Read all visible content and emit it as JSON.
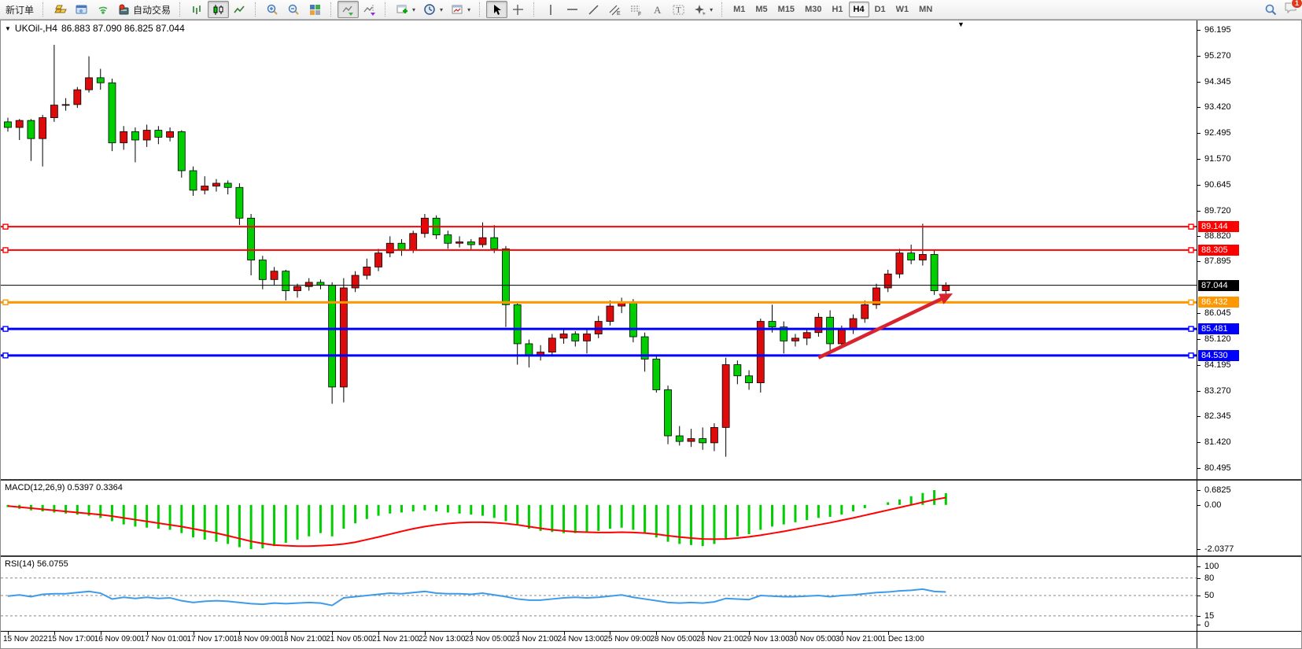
{
  "toolbar": {
    "new_order": "新订单",
    "auto_trading": "自动交易",
    "timeframes": [
      "M1",
      "M5",
      "M15",
      "M30",
      "H1",
      "H4",
      "D1",
      "W1",
      "MN"
    ],
    "active_timeframe": "H4",
    "notification_badge": "1",
    "icon_names": [
      "gold-bars-icon",
      "terminal-icon",
      "signals-icon",
      "auto-trading-icon",
      "bar-chart-icon",
      "candlestick-chart-icon",
      "line-chart-icon",
      "zoom-in-icon",
      "zoom-out-icon",
      "tile-windows-icon",
      "auto-scroll-icon",
      "chart-shift-icon",
      "add-indicator-icon",
      "periods-clock-icon",
      "templates-icon",
      "cursor-icon",
      "crosshair-icon",
      "vertical-line-icon",
      "horizontal-line-icon",
      "trendline-icon",
      "equidistant-channel-icon",
      "fibonacci-icon",
      "text-icon",
      "text-label-icon",
      "arrows-icon",
      "search-icon",
      "chat-icon"
    ]
  },
  "chart_window": {
    "title": "UKOil-,H4",
    "ohlc": "86.883 87.090 86.825 87.044"
  },
  "macd_pane": {
    "label": "MACD(12,26,9) 0.5397 0.3364"
  },
  "rsi_pane": {
    "label": "RSI(14) 56.0755"
  },
  "chart_data": {
    "type": "candlestick",
    "symbol": "UKOil-",
    "period": "H4",
    "current": {
      "open": 86.883,
      "high": 87.09,
      "low": 86.825,
      "close": 87.044
    },
    "y_ticks": [
      96.195,
      95.27,
      94.345,
      93.42,
      92.495,
      91.57,
      90.645,
      89.72,
      88.82,
      87.895,
      86.045,
      85.12,
      84.195,
      83.27,
      82.345,
      81.42,
      80.495
    ],
    "y_range": [
      80.495,
      96.195
    ],
    "x_labels": [
      "15 Nov 2022",
      "15 Nov 17:00",
      "16 Nov 09:00",
      "17 Nov 01:00",
      "17 Nov 17:00",
      "18 Nov 09:00",
      "18 Nov 21:00",
      "21 Nov 05:00",
      "21 Nov 21:00",
      "22 Nov 13:00",
      "23 Nov 05:00",
      "23 Nov 21:00",
      "24 Nov 13:00",
      "25 Nov 09:00",
      "28 Nov 05:00",
      "28 Nov 21:00",
      "29 Nov 13:00",
      "30 Nov 05:00",
      "30 Nov 21:00",
      "1 Dec 13:00"
    ],
    "x_label_every": 4,
    "colors": {
      "bull": "#dd0b0b",
      "bear": "#00ce00",
      "wick": "#000000",
      "background": "#ffffff"
    },
    "candles": [
      [
        92.9,
        93.05,
        92.55,
        92.7
      ],
      [
        92.7,
        93.0,
        92.25,
        92.95
      ],
      [
        92.95,
        93.0,
        91.5,
        92.3
      ],
      [
        92.3,
        93.15,
        91.3,
        93.05
      ],
      [
        93.05,
        95.66,
        92.9,
        93.5
      ],
      [
        93.5,
        93.75,
        93.3,
        93.52
      ],
      [
        93.52,
        94.15,
        93.4,
        94.05
      ],
      [
        94.05,
        95.25,
        93.95,
        94.48
      ],
      [
        94.48,
        94.8,
        94.05,
        94.3
      ],
      [
        94.3,
        94.45,
        91.85,
        92.15
      ],
      [
        92.15,
        92.75,
        91.9,
        92.55
      ],
      [
        92.55,
        92.7,
        91.45,
        92.25
      ],
      [
        92.25,
        92.8,
        92.0,
        92.6
      ],
      [
        92.6,
        92.75,
        92.1,
        92.35
      ],
      [
        92.35,
        92.7,
        92.2,
        92.55
      ],
      [
        92.55,
        92.6,
        90.9,
        91.15
      ],
      [
        91.15,
        91.3,
        90.25,
        90.45
      ],
      [
        90.45,
        90.95,
        90.3,
        90.6
      ],
      [
        90.6,
        90.85,
        90.4,
        90.7
      ],
      [
        90.7,
        90.8,
        90.3,
        90.55
      ],
      [
        90.55,
        90.7,
        89.2,
        89.45
      ],
      [
        89.45,
        89.6,
        87.4,
        87.95
      ],
      [
        87.95,
        88.1,
        86.9,
        87.25
      ],
      [
        87.25,
        87.7,
        87.05,
        87.55
      ],
      [
        87.55,
        87.6,
        86.5,
        86.85
      ],
      [
        86.85,
        87.1,
        86.6,
        87.0
      ],
      [
        87.0,
        87.3,
        86.85,
        87.15
      ],
      [
        87.15,
        87.25,
        86.9,
        87.05
      ],
      [
        87.05,
        87.15,
        82.8,
        83.4
      ],
      [
        83.4,
        87.3,
        82.85,
        86.95
      ],
      [
        86.95,
        87.55,
        86.8,
        87.4
      ],
      [
        87.4,
        88.0,
        87.25,
        87.7
      ],
      [
        87.7,
        88.35,
        87.55,
        88.2
      ],
      [
        88.2,
        88.8,
        88.05,
        88.55
      ],
      [
        88.55,
        88.7,
        88.1,
        88.3
      ],
      [
        88.3,
        89.0,
        88.2,
        88.9
      ],
      [
        88.9,
        89.6,
        88.75,
        89.45
      ],
      [
        89.45,
        89.55,
        88.7,
        88.85
      ],
      [
        88.85,
        89.0,
        88.35,
        88.55
      ],
      [
        88.55,
        88.8,
        88.4,
        88.6
      ],
      [
        88.6,
        88.7,
        88.3,
        88.5
      ],
      [
        88.5,
        89.3,
        88.4,
        88.75
      ],
      [
        88.75,
        89.2,
        88.2,
        88.35
      ],
      [
        88.35,
        88.45,
        85.55,
        86.35
      ],
      [
        86.35,
        86.45,
        84.2,
        84.95
      ],
      [
        84.95,
        85.1,
        84.1,
        84.55
      ],
      [
        84.55,
        84.9,
        84.35,
        84.65
      ],
      [
        84.65,
        85.3,
        84.5,
        85.15
      ],
      [
        85.15,
        85.45,
        84.95,
        85.3
      ],
      [
        85.3,
        85.4,
        84.85,
        85.05
      ],
      [
        85.05,
        85.5,
        84.6,
        85.3
      ],
      [
        85.3,
        85.95,
        85.15,
        85.75
      ],
      [
        85.75,
        86.5,
        85.6,
        86.3
      ],
      [
        86.3,
        86.6,
        86.05,
        86.45
      ],
      [
        86.45,
        86.55,
        85.0,
        85.2
      ],
      [
        85.2,
        85.35,
        83.95,
        84.4
      ],
      [
        84.4,
        84.55,
        83.2,
        83.3
      ],
      [
        83.3,
        83.45,
        81.35,
        81.65
      ],
      [
        81.65,
        82.0,
        81.3,
        81.45
      ],
      [
        81.45,
        81.9,
        81.25,
        81.55
      ],
      [
        81.55,
        81.95,
        81.15,
        81.4
      ],
      [
        81.4,
        82.1,
        81.1,
        81.95
      ],
      [
        81.95,
        84.45,
        80.9,
        84.2
      ],
      [
        84.2,
        84.35,
        83.5,
        83.8
      ],
      [
        83.8,
        84.0,
        83.3,
        83.55
      ],
      [
        83.55,
        85.85,
        83.2,
        85.75
      ],
      [
        85.75,
        86.35,
        85.35,
        85.55
      ],
      [
        85.55,
        85.75,
        84.6,
        85.05
      ],
      [
        85.05,
        85.3,
        84.85,
        85.15
      ],
      [
        85.15,
        85.45,
        84.9,
        85.35
      ],
      [
        85.35,
        86.05,
        85.2,
        85.9
      ],
      [
        85.9,
        86.15,
        84.6,
        84.95
      ],
      [
        84.95,
        85.6,
        84.8,
        85.45
      ],
      [
        85.45,
        86.0,
        85.3,
        85.85
      ],
      [
        85.85,
        86.5,
        85.7,
        86.35
      ],
      [
        86.35,
        87.1,
        86.2,
        86.95
      ],
      [
        86.95,
        87.6,
        86.8,
        87.45
      ],
      [
        87.45,
        88.35,
        87.3,
        88.2
      ],
      [
        88.2,
        88.5,
        87.8,
        87.95
      ],
      [
        87.95,
        89.25,
        87.75,
        88.15
      ],
      [
        88.15,
        88.3,
        86.7,
        86.85
      ],
      [
        86.85,
        87.15,
        86.7,
        87.044
      ]
    ],
    "hlines": [
      {
        "price": 89.144,
        "color": "#ff0000",
        "width": 2,
        "label": "89.144",
        "markers": true
      },
      {
        "price": 88.305,
        "color": "#ff0000",
        "width": 2,
        "label": "88.305",
        "markers": true
      },
      {
        "price": 87.044,
        "color": "#000000",
        "width": 1,
        "label": "87.044",
        "markers": false,
        "role": "current-price"
      },
      {
        "price": 86.432,
        "color": "#ff9800",
        "width": 3,
        "label": "86.432",
        "markers": true
      },
      {
        "price": 85.481,
        "color": "#0000ff",
        "width": 3,
        "label": "85.481",
        "markers": true
      },
      {
        "price": 84.53,
        "color": "#0000ff",
        "width": 3,
        "label": "84.530",
        "markers": true
      }
    ],
    "arrow": {
      "candle1": 70,
      "price1": 84.45,
      "candle2": 81.6,
      "price2": 86.75,
      "color": "#d9232e"
    },
    "macd": {
      "params": "12,26,9",
      "value": 0.5397,
      "signal_value": 0.3364,
      "axis_labels": [
        "0.6825",
        "0.00",
        "-2.0377"
      ],
      "histogram_color": "#00ce00",
      "signal_color": "#ff0000",
      "histogram": [
        -0.1,
        -0.18,
        -0.25,
        -0.3,
        -0.35,
        -0.4,
        -0.45,
        -0.5,
        -0.6,
        -0.75,
        -0.9,
        -1.0,
        -1.05,
        -1.1,
        -1.15,
        -1.3,
        -1.5,
        -1.6,
        -1.7,
        -1.8,
        -1.95,
        -2.04,
        -2.0,
        -1.9,
        -1.75,
        -1.6,
        -1.45,
        -1.3,
        -1.45,
        -1.1,
        -0.85,
        -0.65,
        -0.5,
        -0.4,
        -0.35,
        -0.3,
        -0.25,
        -0.3,
        -0.35,
        -0.4,
        -0.45,
        -0.5,
        -0.6,
        -0.75,
        -0.95,
        -1.1,
        -1.2,
        -1.25,
        -1.3,
        -1.3,
        -1.25,
        -1.2,
        -1.1,
        -1.05,
        -1.15,
        -1.3,
        -1.5,
        -1.7,
        -1.8,
        -1.85,
        -1.9,
        -1.8,
        -1.6,
        -1.45,
        -1.35,
        -1.15,
        -1.0,
        -0.9,
        -0.8,
        -0.7,
        -0.6,
        -0.55,
        -0.45,
        -0.3,
        -0.15,
        0.0,
        0.12,
        0.25,
        0.4,
        0.55,
        0.6825,
        0.5397
      ],
      "signal": [
        -0.05,
        -0.1,
        -0.15,
        -0.2,
        -0.25,
        -0.3,
        -0.35,
        -0.4,
        -0.45,
        -0.52,
        -0.6,
        -0.68,
        -0.76,
        -0.84,
        -0.92,
        -1.0,
        -1.1,
        -1.2,
        -1.3,
        -1.42,
        -1.55,
        -1.68,
        -1.78,
        -1.85,
        -1.88,
        -1.9,
        -1.9,
        -1.88,
        -1.85,
        -1.8,
        -1.72,
        -1.6,
        -1.48,
        -1.35,
        -1.22,
        -1.1,
        -1.0,
        -0.92,
        -0.86,
        -0.82,
        -0.8,
        -0.8,
        -0.82,
        -0.86,
        -0.92,
        -1.0,
        -1.08,
        -1.15,
        -1.2,
        -1.24,
        -1.26,
        -1.27,
        -1.27,
        -1.26,
        -1.27,
        -1.3,
        -1.35,
        -1.42,
        -1.48,
        -1.53,
        -1.57,
        -1.58,
        -1.57,
        -1.53,
        -1.47,
        -1.4,
        -1.31,
        -1.22,
        -1.12,
        -1.02,
        -0.92,
        -0.82,
        -0.71,
        -0.6,
        -0.48,
        -0.36,
        -0.24,
        -0.12,
        0.0,
        0.12,
        0.24,
        0.3364
      ]
    },
    "rsi": {
      "period": 14,
      "value": 56.0755,
      "levels": [
        80,
        50,
        15
      ],
      "axis_labels": [
        "100",
        "80",
        "50",
        "15",
        "0"
      ],
      "color": "#3e9be9",
      "values": [
        49,
        51,
        48,
        52,
        53,
        53,
        55,
        57,
        54,
        44,
        47,
        45,
        47,
        45,
        46,
        41,
        38,
        40,
        41,
        40,
        38,
        36,
        35,
        37,
        36,
        37,
        38,
        37,
        33,
        46,
        48,
        50,
        52,
        54,
        53,
        55,
        57,
        54,
        53,
        53,
        52,
        54,
        51,
        48,
        44,
        42,
        42,
        44,
        46,
        47,
        46,
        47,
        49,
        51,
        47,
        44,
        41,
        38,
        37,
        38,
        37,
        39,
        45,
        44,
        43,
        50,
        49,
        48,
        48,
        49,
        50,
        48,
        50,
        51,
        53,
        55,
        56,
        58,
        59,
        61,
        57,
        56.08
      ]
    }
  }
}
